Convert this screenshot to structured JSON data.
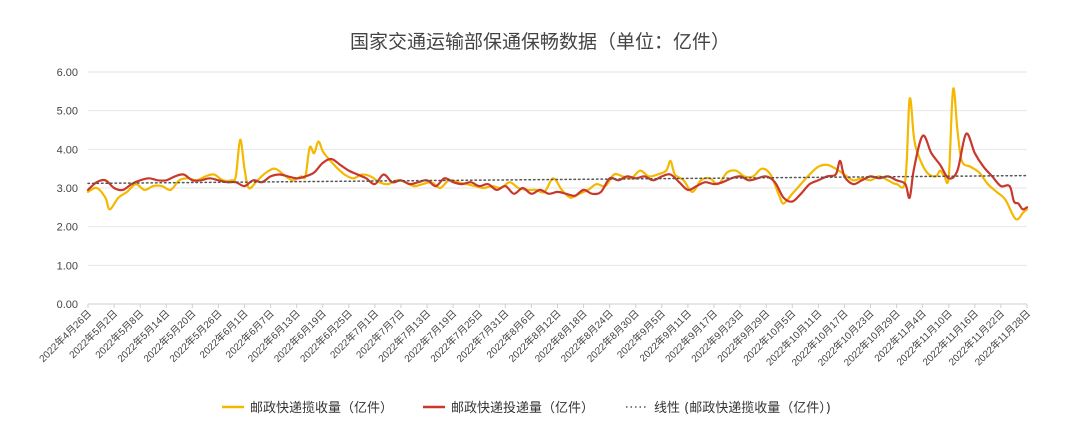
{
  "chart_data": {
    "type": "line",
    "title": "国家交通运输部保通保畅数据（单位：亿件）",
    "xlabel": "",
    "ylabel": "",
    "ylim": [
      0,
      6
    ],
    "yticks": [
      "0.00",
      "1.00",
      "2.00",
      "3.00",
      "4.00",
      "5.00",
      "6.00"
    ],
    "grid": "horizontal",
    "legend_position": "bottom",
    "x_start": "2022-04-26",
    "x_end": "2022-11-28",
    "xtick_labels": [
      "2022年4月26日",
      "2022年5月2日",
      "2022年5月8日",
      "2022年5月14日",
      "2022年5月20日",
      "2022年5月26日",
      "2022年6月1日",
      "2022年6月7日",
      "2022年6月13日",
      "2022年6月19日",
      "2022年6月25日",
      "2022年7月1日",
      "2022年7月7日",
      "2022年7月13日",
      "2022年7月19日",
      "2022年7月25日",
      "2022年7月31日",
      "2022年8月6日",
      "2022年8月12日",
      "2022年8月18日",
      "2022年8月24日",
      "2022年8月30日",
      "2022年9月5日",
      "2022年9月11日",
      "2022年9月17日",
      "2022年9月23日",
      "2022年9月29日",
      "2022年10月5日",
      "2022年10月11日",
      "2022年10月17日",
      "2022年10月23日",
      "2022年10月29日",
      "2022年11月4日",
      "2022年11月10日",
      "2022年11月16日",
      "2022年11月22日",
      "2022年11月28日"
    ],
    "series": [
      {
        "name": "邮政快递揽收量（亿件）",
        "color": "#F5B800",
        "style": "solid",
        "points": [
          [
            "2022-04-26",
            2.9
          ],
          [
            "2022-04-28",
            3.0
          ],
          [
            "2022-04-30",
            2.75
          ],
          [
            "2022-05-01",
            2.45
          ],
          [
            "2022-05-03",
            2.75
          ],
          [
            "2022-05-05",
            2.9
          ],
          [
            "2022-05-07",
            3.1
          ],
          [
            "2022-05-09",
            2.95
          ],
          [
            "2022-05-11",
            3.05
          ],
          [
            "2022-05-13",
            3.05
          ],
          [
            "2022-05-15",
            2.95
          ],
          [
            "2022-05-17",
            3.2
          ],
          [
            "2022-05-19",
            3.25
          ],
          [
            "2022-05-21",
            3.2
          ],
          [
            "2022-05-23",
            3.3
          ],
          [
            "2022-05-25",
            3.35
          ],
          [
            "2022-05-27",
            3.2
          ],
          [
            "2022-05-29",
            3.2
          ],
          [
            "2022-05-30",
            3.3
          ],
          [
            "2022-05-31",
            4.25
          ],
          [
            "2022-06-01",
            3.5
          ],
          [
            "2022-06-02",
            3.0
          ],
          [
            "2022-06-04",
            3.2
          ],
          [
            "2022-06-06",
            3.4
          ],
          [
            "2022-06-08",
            3.5
          ],
          [
            "2022-06-10",
            3.35
          ],
          [
            "2022-06-12",
            3.2
          ],
          [
            "2022-06-14",
            3.3
          ],
          [
            "2022-06-15",
            3.3
          ],
          [
            "2022-06-16",
            4.05
          ],
          [
            "2022-06-17",
            3.9
          ],
          [
            "2022-06-18",
            4.2
          ],
          [
            "2022-06-19",
            3.95
          ],
          [
            "2022-06-20",
            3.8
          ],
          [
            "2022-06-22",
            3.55
          ],
          [
            "2022-06-24",
            3.35
          ],
          [
            "2022-06-26",
            3.25
          ],
          [
            "2022-06-28",
            3.35
          ],
          [
            "2022-06-30",
            3.3
          ],
          [
            "2022-07-02",
            3.15
          ],
          [
            "2022-07-04",
            3.1
          ],
          [
            "2022-07-06",
            3.2
          ],
          [
            "2022-07-08",
            3.15
          ],
          [
            "2022-07-10",
            3.05
          ],
          [
            "2022-07-12",
            3.1
          ],
          [
            "2022-07-14",
            3.15
          ],
          [
            "2022-07-16",
            3.0
          ],
          [
            "2022-07-18",
            3.2
          ],
          [
            "2022-07-20",
            3.15
          ],
          [
            "2022-07-22",
            3.1
          ],
          [
            "2022-07-24",
            3.05
          ],
          [
            "2022-07-26",
            3.0
          ],
          [
            "2022-07-28",
            3.05
          ],
          [
            "2022-07-30",
            3.0
          ],
          [
            "2022-08-01",
            3.15
          ],
          [
            "2022-08-03",
            3.0
          ],
          [
            "2022-08-05",
            2.95
          ],
          [
            "2022-08-07",
            2.95
          ],
          [
            "2022-08-09",
            2.9
          ],
          [
            "2022-08-11",
            3.25
          ],
          [
            "2022-08-13",
            2.95
          ],
          [
            "2022-08-15",
            2.75
          ],
          [
            "2022-08-17",
            2.85
          ],
          [
            "2022-08-19",
            2.95
          ],
          [
            "2022-08-21",
            3.1
          ],
          [
            "2022-08-23",
            3.05
          ],
          [
            "2022-08-25",
            3.35
          ],
          [
            "2022-08-27",
            3.3
          ],
          [
            "2022-08-29",
            3.25
          ],
          [
            "2022-08-31",
            3.45
          ],
          [
            "2022-09-02",
            3.3
          ],
          [
            "2022-09-04",
            3.35
          ],
          [
            "2022-09-06",
            3.45
          ],
          [
            "2022-09-07",
            3.7
          ],
          [
            "2022-09-08",
            3.35
          ],
          [
            "2022-09-10",
            3.2
          ],
          [
            "2022-09-12",
            2.9
          ],
          [
            "2022-09-14",
            3.2
          ],
          [
            "2022-09-16",
            3.25
          ],
          [
            "2022-09-18",
            3.1
          ],
          [
            "2022-09-20",
            3.4
          ],
          [
            "2022-09-22",
            3.45
          ],
          [
            "2022-09-24",
            3.3
          ],
          [
            "2022-09-26",
            3.3
          ],
          [
            "2022-09-28",
            3.5
          ],
          [
            "2022-09-30",
            3.35
          ],
          [
            "2022-10-02",
            2.8
          ],
          [
            "2022-10-03",
            2.6
          ],
          [
            "2022-10-05",
            2.85
          ],
          [
            "2022-10-07",
            3.1
          ],
          [
            "2022-10-09",
            3.35
          ],
          [
            "2022-10-11",
            3.55
          ],
          [
            "2022-10-13",
            3.6
          ],
          [
            "2022-10-15",
            3.5
          ],
          [
            "2022-10-17",
            3.35
          ],
          [
            "2022-10-19",
            3.2
          ],
          [
            "2022-10-21",
            3.25
          ],
          [
            "2022-10-23",
            3.2
          ],
          [
            "2022-10-25",
            3.3
          ],
          [
            "2022-10-27",
            3.2
          ],
          [
            "2022-10-29",
            3.1
          ],
          [
            "2022-10-31",
            3.2
          ],
          [
            "2022-11-01",
            5.3
          ],
          [
            "2022-11-02",
            4.3
          ],
          [
            "2022-11-03",
            3.85
          ],
          [
            "2022-11-05",
            3.4
          ],
          [
            "2022-11-07",
            3.3
          ],
          [
            "2022-11-08",
            3.45
          ],
          [
            "2022-11-09",
            3.3
          ],
          [
            "2022-11-10",
            3.3
          ],
          [
            "2022-11-11",
            5.55
          ],
          [
            "2022-11-12",
            4.5
          ],
          [
            "2022-11-13",
            3.7
          ],
          [
            "2022-11-15",
            3.55
          ],
          [
            "2022-11-17",
            3.4
          ],
          [
            "2022-11-19",
            3.1
          ],
          [
            "2022-11-21",
            2.9
          ],
          [
            "2022-11-23",
            2.7
          ],
          [
            "2022-11-25",
            2.25
          ],
          [
            "2022-11-26",
            2.2
          ],
          [
            "2022-11-27",
            2.35
          ],
          [
            "2022-11-28",
            2.45
          ]
        ]
      },
      {
        "name": "邮政快递投递量（亿件）",
        "color": "#C8382C",
        "style": "solid",
        "points": [
          [
            "2022-04-26",
            2.95
          ],
          [
            "2022-04-28",
            3.15
          ],
          [
            "2022-04-30",
            3.2
          ],
          [
            "2022-05-02",
            3.0
          ],
          [
            "2022-05-04",
            2.95
          ],
          [
            "2022-05-06",
            3.1
          ],
          [
            "2022-05-08",
            3.2
          ],
          [
            "2022-05-10",
            3.25
          ],
          [
            "2022-05-12",
            3.2
          ],
          [
            "2022-05-14",
            3.2
          ],
          [
            "2022-05-16",
            3.3
          ],
          [
            "2022-05-18",
            3.35
          ],
          [
            "2022-05-20",
            3.2
          ],
          [
            "2022-05-22",
            3.2
          ],
          [
            "2022-05-24",
            3.25
          ],
          [
            "2022-05-26",
            3.2
          ],
          [
            "2022-05-28",
            3.15
          ],
          [
            "2022-05-30",
            3.15
          ],
          [
            "2022-06-01",
            3.05
          ],
          [
            "2022-06-03",
            3.2
          ],
          [
            "2022-06-05",
            3.15
          ],
          [
            "2022-06-07",
            3.3
          ],
          [
            "2022-06-09",
            3.35
          ],
          [
            "2022-06-11",
            3.3
          ],
          [
            "2022-06-13",
            3.25
          ],
          [
            "2022-06-15",
            3.3
          ],
          [
            "2022-06-17",
            3.4
          ],
          [
            "2022-06-19",
            3.65
          ],
          [
            "2022-06-21",
            3.75
          ],
          [
            "2022-06-23",
            3.6
          ],
          [
            "2022-06-25",
            3.45
          ],
          [
            "2022-06-27",
            3.35
          ],
          [
            "2022-06-29",
            3.25
          ],
          [
            "2022-07-01",
            3.1
          ],
          [
            "2022-07-03",
            3.35
          ],
          [
            "2022-07-05",
            3.15
          ],
          [
            "2022-07-07",
            3.2
          ],
          [
            "2022-07-09",
            3.1
          ],
          [
            "2022-07-11",
            3.15
          ],
          [
            "2022-07-13",
            3.2
          ],
          [
            "2022-07-15",
            3.05
          ],
          [
            "2022-07-17",
            3.25
          ],
          [
            "2022-07-19",
            3.15
          ],
          [
            "2022-07-21",
            3.1
          ],
          [
            "2022-07-23",
            3.15
          ],
          [
            "2022-07-25",
            3.05
          ],
          [
            "2022-07-27",
            3.1
          ],
          [
            "2022-07-29",
            2.95
          ],
          [
            "2022-07-31",
            3.05
          ],
          [
            "2022-08-02",
            2.85
          ],
          [
            "2022-08-04",
            3.0
          ],
          [
            "2022-08-06",
            2.85
          ],
          [
            "2022-08-08",
            2.95
          ],
          [
            "2022-08-10",
            2.85
          ],
          [
            "2022-08-12",
            2.9
          ],
          [
            "2022-08-14",
            2.85
          ],
          [
            "2022-08-16",
            2.8
          ],
          [
            "2022-08-18",
            2.95
          ],
          [
            "2022-08-20",
            2.85
          ],
          [
            "2022-08-22",
            2.9
          ],
          [
            "2022-08-24",
            3.25
          ],
          [
            "2022-08-26",
            3.2
          ],
          [
            "2022-08-28",
            3.3
          ],
          [
            "2022-08-30",
            3.25
          ],
          [
            "2022-09-01",
            3.3
          ],
          [
            "2022-09-03",
            3.2
          ],
          [
            "2022-09-05",
            3.3
          ],
          [
            "2022-09-07",
            3.35
          ],
          [
            "2022-09-09",
            3.15
          ],
          [
            "2022-09-11",
            2.95
          ],
          [
            "2022-09-13",
            3.05
          ],
          [
            "2022-09-15",
            3.15
          ],
          [
            "2022-09-17",
            3.1
          ],
          [
            "2022-09-19",
            3.15
          ],
          [
            "2022-09-21",
            3.25
          ],
          [
            "2022-09-23",
            3.3
          ],
          [
            "2022-09-25",
            3.2
          ],
          [
            "2022-09-27",
            3.25
          ],
          [
            "2022-09-29",
            3.3
          ],
          [
            "2022-10-01",
            3.15
          ],
          [
            "2022-10-03",
            2.75
          ],
          [
            "2022-10-05",
            2.65
          ],
          [
            "2022-10-07",
            2.85
          ],
          [
            "2022-10-09",
            3.1
          ],
          [
            "2022-10-11",
            3.2
          ],
          [
            "2022-10-13",
            3.3
          ],
          [
            "2022-10-15",
            3.35
          ],
          [
            "2022-10-16",
            3.7
          ],
          [
            "2022-10-17",
            3.3
          ],
          [
            "2022-10-19",
            3.1
          ],
          [
            "2022-10-21",
            3.2
          ],
          [
            "2022-10-23",
            3.3
          ],
          [
            "2022-10-25",
            3.25
          ],
          [
            "2022-10-27",
            3.3
          ],
          [
            "2022-10-29",
            3.2
          ],
          [
            "2022-10-31",
            3.1
          ],
          [
            "2022-11-01",
            2.75
          ],
          [
            "2022-11-02",
            3.5
          ],
          [
            "2022-11-04",
            4.35
          ],
          [
            "2022-11-06",
            3.9
          ],
          [
            "2022-11-08",
            3.6
          ],
          [
            "2022-11-10",
            3.25
          ],
          [
            "2022-11-12",
            3.45
          ],
          [
            "2022-11-14",
            4.4
          ],
          [
            "2022-11-16",
            3.9
          ],
          [
            "2022-11-18",
            3.55
          ],
          [
            "2022-11-20",
            3.3
          ],
          [
            "2022-11-22",
            3.05
          ],
          [
            "2022-11-24",
            3.05
          ],
          [
            "2022-11-25",
            2.65
          ],
          [
            "2022-11-26",
            2.6
          ],
          [
            "2022-11-27",
            2.45
          ],
          [
            "2022-11-28",
            2.5
          ]
        ]
      },
      {
        "name": "线性 (邮政快递揽收量（亿件）)",
        "color": "#555555",
        "style": "dotted",
        "points": [
          [
            "2022-04-26",
            3.12
          ],
          [
            "2022-11-28",
            3.32
          ]
        ]
      }
    ]
  }
}
